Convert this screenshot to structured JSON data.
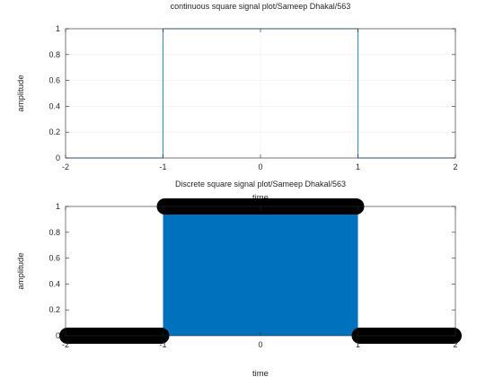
{
  "chart_data": [
    {
      "type": "line",
      "title": "continuous square signal plot/Sameep Dhakal/563",
      "xlabel": "time",
      "ylabel": "amplitude",
      "xlim": [
        -2,
        2
      ],
      "ylim": [
        0,
        1
      ],
      "xticks": [
        -2,
        -1,
        0,
        1,
        2
      ],
      "yticks": [
        0,
        0.2,
        0.4,
        0.6,
        0.8,
        1
      ],
      "grid": true,
      "series": [
        {
          "x": [
            -2,
            -1,
            -1,
            1,
            1,
            2
          ],
          "y": [
            0,
            0,
            1,
            1,
            0,
            0
          ],
          "color": "#0072BD"
        }
      ]
    },
    {
      "type": "stem",
      "title": "Discrete square signal plot/Sameep Dhakal/563",
      "xlabel": "time",
      "ylabel": "amplitude",
      "xlim": [
        -2,
        2
      ],
      "ylim": [
        0,
        1
      ],
      "xticks": [
        -2,
        -1,
        0,
        1,
        2
      ],
      "yticks": [
        0,
        0.2,
        0.4,
        0.6,
        0.8,
        1
      ],
      "grid": false,
      "series": [
        {
          "x_range": [
            -2,
            2
          ],
          "segments": [
            {
              "from": -2,
              "to": -1,
              "value": 0
            },
            {
              "from": -1,
              "to": 1,
              "value": 1
            },
            {
              "from": 1,
              "to": 2,
              "value": 0
            }
          ],
          "stem_color": "#0072BD",
          "marker_color": "#000000"
        }
      ]
    }
  ]
}
